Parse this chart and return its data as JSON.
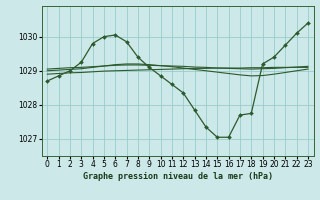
{
  "title": "Graphe pression niveau de la mer (hPa)",
  "bg_color": "#cce8e8",
  "grid_color": "#99cccc",
  "line_color": "#2d5a2d",
  "xlim": [
    -0.5,
    23.5
  ],
  "ylim": [
    1026.5,
    1030.9
  ],
  "yticks": [
    1027,
    1028,
    1029,
    1030
  ],
  "xticks": [
    0,
    1,
    2,
    3,
    4,
    5,
    6,
    7,
    8,
    9,
    10,
    11,
    12,
    13,
    14,
    15,
    16,
    17,
    18,
    19,
    20,
    21,
    22,
    23
  ],
  "hourly": [
    1028.7,
    1028.85,
    1029.0,
    1029.25,
    1029.8,
    1030.0,
    1030.05,
    1029.85,
    1029.4,
    1029.1,
    1028.85,
    1028.6,
    1028.35,
    1027.85,
    1027.35,
    1027.05,
    1027.05,
    1027.7,
    1027.75,
    1029.2,
    1029.4,
    1029.75,
    1030.1,
    1030.4
  ],
  "mean6h": [
    1029.0,
    1029.02,
    1029.04,
    1029.06,
    1029.1,
    1029.14,
    1029.18,
    1029.2,
    1029.2,
    1029.18,
    1029.15,
    1029.12,
    1029.08,
    1029.04,
    1029.0,
    1028.96,
    1028.92,
    1028.88,
    1028.85,
    1028.86,
    1028.9,
    1028.95,
    1029.0,
    1029.05
  ],
  "mean12h": [
    1029.05,
    1029.07,
    1029.09,
    1029.1,
    1029.12,
    1029.14,
    1029.16,
    1029.17,
    1029.17,
    1029.16,
    1029.15,
    1029.14,
    1029.13,
    1029.11,
    1029.1,
    1029.08,
    1029.07,
    1029.06,
    1029.05,
    1029.06,
    1029.07,
    1029.09,
    1029.11,
    1029.13
  ],
  "mean24h": [
    1028.9,
    1028.92,
    1028.94,
    1028.95,
    1028.97,
    1028.99,
    1029.0,
    1029.01,
    1029.02,
    1029.03,
    1029.04,
    1029.05,
    1029.06,
    1029.07,
    1029.07,
    1029.08,
    1029.08,
    1029.08,
    1029.09,
    1029.09,
    1029.1,
    1029.1,
    1029.1,
    1029.1
  ],
  "tick_fontsize": 5.5,
  "xlabel_fontsize": 6.0
}
